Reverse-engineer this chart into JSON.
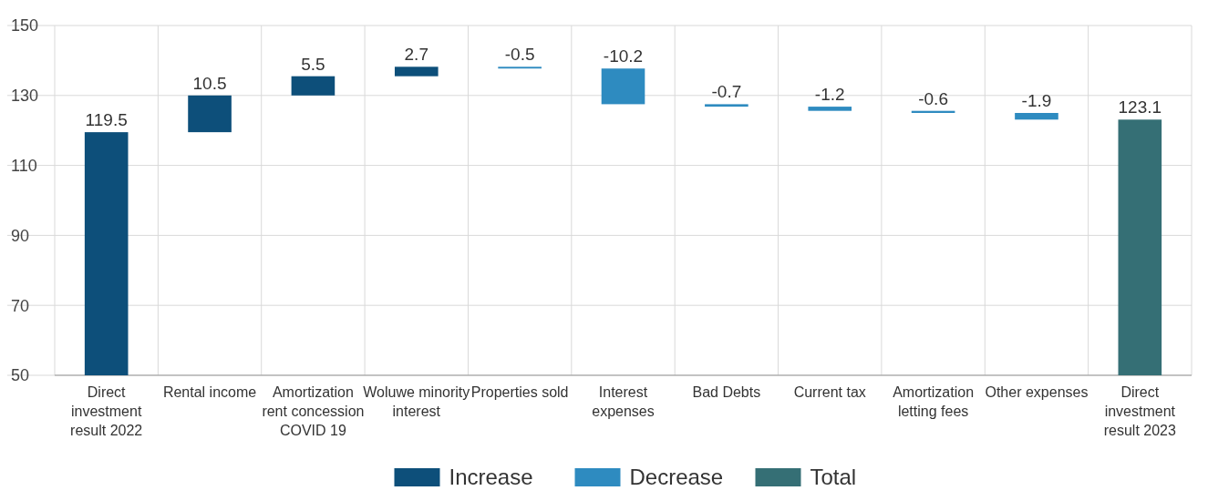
{
  "chart_data": {
    "type": "bar",
    "categories": [
      "Direct investment result 2022",
      "Rental income",
      "Amortization rent concession COVID 19",
      "Woluwe minority interest",
      "Properties sold",
      "Interest expenses",
      "Bad Debts",
      "Current tax",
      "Amortization letting fees",
      "Other expenses",
      "Direct investment result 2023"
    ],
    "series": [
      {
        "name": "Increase",
        "color": "#0d4f7a",
        "values": [
          119.5,
          10.5,
          5.5,
          2.7,
          null,
          null,
          null,
          null,
          null,
          null,
          null
        ],
        "base": [
          null,
          119.5,
          130.0,
          135.5,
          null,
          null,
          null,
          null,
          null,
          null,
          null
        ]
      },
      {
        "name": "Decrease",
        "color": "#2e8bc0",
        "values": [
          null,
          null,
          null,
          null,
          -0.5,
          -10.2,
          -0.7,
          -1.2,
          -0.6,
          -1.9,
          null
        ],
        "base": [
          null,
          null,
          null,
          null,
          138.2,
          137.7,
          127.5,
          126.8,
          125.6,
          125.0,
          null
        ]
      },
      {
        "name": "Total",
        "color": "#356f75",
        "values": [
          null,
          null,
          null,
          null,
          null,
          null,
          null,
          null,
          null,
          null,
          123.1
        ]
      }
    ],
    "ylim": [
      50,
      150
    ],
    "yticks": [
      50,
      70,
      90,
      110,
      130,
      150
    ],
    "grid": true,
    "data_labels": true,
    "legend": "bottom"
  }
}
